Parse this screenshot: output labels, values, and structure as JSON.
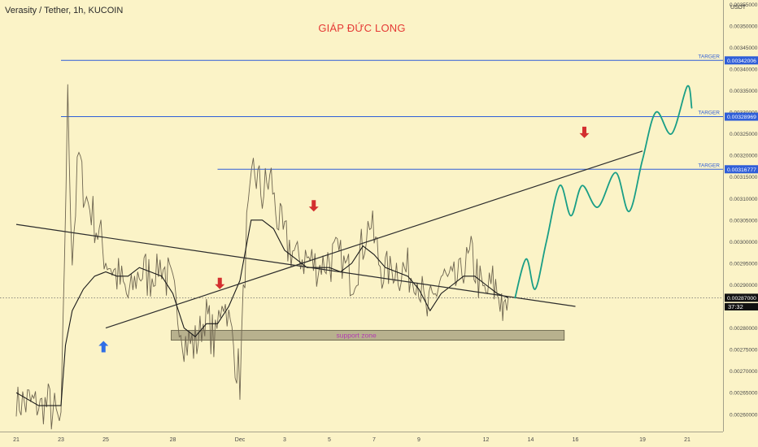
{
  "header": {
    "pair_title": "Verasity / Tether, 1h, KUCOIN",
    "author": "GIÁP ĐỨC LONG"
  },
  "axis": {
    "unit": "USDT",
    "countdown": "37:32"
  },
  "colors": {
    "background": "#fbf3c7",
    "price": "#6e6550",
    "ma": "#1a1a1a",
    "trendline": "#2d2d2d",
    "target_line": "#2f5ed8",
    "projection": "#199e86",
    "arrow_down": "#d32f2f",
    "arrow_up": "#2f6ee6",
    "support_zone": "#a7a080",
    "support_text": "#b23bb0",
    "author": "#e53935"
  },
  "chart_data": {
    "type": "line",
    "symbol": "VRA/USDT",
    "timeframe": "1h",
    "exchange": "KUCOIN",
    "ylim": [
      0.00256,
      0.00356
    ],
    "y_ticks": [
      "0.00355000",
      "0.00350000",
      "0.00345000",
      "0.00340000",
      "0.00335000",
      "0.00330000",
      "0.00325000",
      "0.00320000",
      "0.00315000",
      "0.00310000",
      "0.00305000",
      "0.00300000",
      "0.00295000",
      "0.00290000",
      "0.00285000",
      "0.00280000",
      "0.00275000",
      "0.00270000",
      "0.00265000",
      "0.00260000"
    ],
    "x_ticks": [
      "21",
      "23",
      "25",
      "28",
      "Dec",
      "3",
      "5",
      "7",
      "9",
      "12",
      "14",
      "16",
      "19",
      "21"
    ],
    "price_series": [
      [
        0.0,
        0.00263
      ],
      [
        1.0,
        0.00262
      ],
      [
        1.5,
        0.00262
      ],
      [
        2.0,
        0.00257
      ],
      [
        2.3,
        0.00333
      ],
      [
        2.5,
        0.00297
      ],
      [
        2.8,
        0.0032
      ],
      [
        3.0,
        0.00312
      ],
      [
        3.5,
        0.00305
      ],
      [
        4.0,
        0.00296
      ],
      [
        4.5,
        0.00292
      ],
      [
        5.0,
        0.00287
      ],
      [
        5.5,
        0.00293
      ],
      [
        6.0,
        0.00292
      ],
      [
        6.5,
        0.00295
      ],
      [
        7.0,
        0.00288
      ],
      [
        7.5,
        0.00277
      ],
      [
        8.0,
        0.00276
      ],
      [
        8.5,
        0.00283
      ],
      [
        8.9,
        0.00276
      ],
      [
        9.2,
        0.00288
      ],
      [
        9.5,
        0.00282
      ],
      [
        10.0,
        0.00268
      ],
      [
        10.3,
        0.00303
      ],
      [
        10.6,
        0.00317
      ],
      [
        11.0,
        0.00311
      ],
      [
        11.4,
        0.00315
      ],
      [
        11.6,
        0.00307
      ],
      [
        12.0,
        0.003
      ],
      [
        12.5,
        0.00297
      ],
      [
        13.0,
        0.00296
      ],
      [
        13.5,
        0.00294
      ],
      [
        14.0,
        0.00296
      ],
      [
        14.5,
        0.00296
      ],
      [
        15.0,
        0.00292
      ],
      [
        15.5,
        0.00299
      ],
      [
        15.8,
        0.00305
      ],
      [
        16.2,
        0.00296
      ],
      [
        16.5,
        0.00293
      ],
      [
        17.0,
        0.00294
      ],
      [
        17.5,
        0.00293
      ],
      [
        18.0,
        0.00291
      ],
      [
        18.3,
        0.00283
      ],
      [
        18.6,
        0.00285
      ],
      [
        19.0,
        0.00292
      ],
      [
        19.5,
        0.00289
      ],
      [
        20.0,
        0.00294
      ],
      [
        20.4,
        0.00296
      ],
      [
        20.8,
        0.00289
      ],
      [
        21.0,
        0.00288
      ],
      [
        21.3,
        0.0029
      ],
      [
        21.7,
        0.00287
      ],
      [
        21.8,
        0.00282
      ],
      [
        22.0,
        0.00287
      ]
    ],
    "moving_average": [
      [
        0.0,
        0.00265
      ],
      [
        1.0,
        0.00262
      ],
      [
        2.0,
        0.00262
      ],
      [
        2.2,
        0.00276
      ],
      [
        2.5,
        0.00284
      ],
      [
        3.0,
        0.00289
      ],
      [
        3.5,
        0.00292
      ],
      [
        4.0,
        0.00293
      ],
      [
        4.5,
        0.00292
      ],
      [
        5.0,
        0.00292
      ],
      [
        5.5,
        0.00294
      ],
      [
        6.0,
        0.00293
      ],
      [
        6.5,
        0.00292
      ],
      [
        7.0,
        0.00288
      ],
      [
        7.5,
        0.0028
      ],
      [
        8.0,
        0.00278
      ],
      [
        8.5,
        0.00281
      ],
      [
        9.0,
        0.00281
      ],
      [
        9.5,
        0.00285
      ],
      [
        10.0,
        0.00291
      ],
      [
        10.5,
        0.00305
      ],
      [
        11.0,
        0.00305
      ],
      [
        11.5,
        0.00303
      ],
      [
        12.0,
        0.00298
      ],
      [
        12.5,
        0.00296
      ],
      [
        13.0,
        0.00294
      ],
      [
        13.5,
        0.00294
      ],
      [
        14.0,
        0.00294
      ],
      [
        14.5,
        0.00293
      ],
      [
        15.0,
        0.00295
      ],
      [
        15.5,
        0.00299
      ],
      [
        16.0,
        0.00297
      ],
      [
        16.5,
        0.00294
      ],
      [
        17.0,
        0.00293
      ],
      [
        17.5,
        0.00292
      ],
      [
        18.0,
        0.00289
      ],
      [
        18.5,
        0.00284
      ],
      [
        19.0,
        0.00288
      ],
      [
        19.5,
        0.0029
      ],
      [
        20.0,
        0.00292
      ],
      [
        20.5,
        0.00292
      ],
      [
        21.0,
        0.0029
      ],
      [
        21.5,
        0.00288
      ],
      [
        22.0,
        0.00287
      ]
    ],
    "current_price": "0.00287000",
    "current_price_value": 0.00287,
    "targets": [
      {
        "label": "TARGER",
        "value": 0.00342006,
        "price_label": "0.00342006",
        "x_start": 2.0
      },
      {
        "label": "TARGER",
        "value": 0.00328969,
        "price_label": "0.00328969",
        "x_start": 2.0
      },
      {
        "label": "TARGER",
        "value": 0.00316777,
        "price_label": "0.00316777",
        "x_start": 9.0
      }
    ],
    "trendlines": [
      {
        "from": [
          0.0,
          0.00304
        ],
        "to": [
          25.0,
          0.00285
        ]
      },
      {
        "from": [
          4.0,
          0.0028
        ],
        "to": [
          28.0,
          0.00321
        ]
      }
    ],
    "support_zone": {
      "label": "support zone",
      "x_range": [
        7.0,
        24.5
      ],
      "y_range": [
        0.00278,
        0.0028
      ]
    },
    "projection": [
      [
        22.3,
        0.00287
      ],
      [
        22.8,
        0.00296
      ],
      [
        23.2,
        0.00289
      ],
      [
        23.7,
        0.003
      ],
      [
        24.3,
        0.00313
      ],
      [
        24.8,
        0.00306
      ],
      [
        25.3,
        0.00313
      ],
      [
        26.0,
        0.00308
      ],
      [
        26.8,
        0.00316
      ],
      [
        27.4,
        0.00307
      ],
      [
        28.0,
        0.00319
      ],
      [
        28.6,
        0.0033
      ],
      [
        29.3,
        0.00325
      ],
      [
        30.0,
        0.00336
      ],
      [
        30.2,
        0.00331
      ]
    ],
    "arrows": [
      {
        "direction": "up",
        "x": 3.9,
        "y": 0.00277
      },
      {
        "direction": "down",
        "x": 9.1,
        "y": 0.00289
      },
      {
        "direction": "down",
        "x": 13.3,
        "y": 0.00307
      },
      {
        "direction": "down",
        "x": 25.4,
        "y": 0.00324
      }
    ],
    "grid": false
  }
}
